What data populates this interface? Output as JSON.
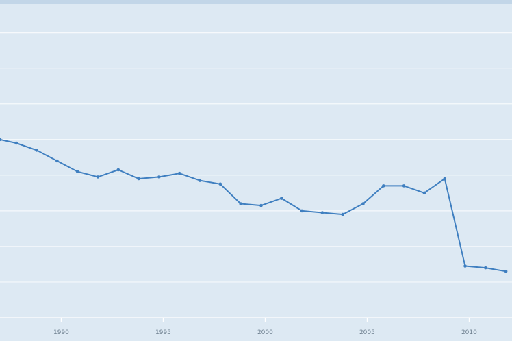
{
  "chart_data": {
    "type": "line",
    "title": "",
    "xlabel": "",
    "ylabel": "",
    "x_ticks": [
      "1990",
      "1995",
      "2000",
      "2005",
      "2010"
    ],
    "xlim": [
      1987,
      2012.1
    ],
    "ylim": [
      0,
      8.8
    ],
    "grid": true,
    "line_color": "#3f7fc0",
    "background_color": "#dde9f3",
    "series": [
      {
        "name": "",
        "x": [
          1987,
          1987.8,
          1988.8,
          1989.8,
          1990.8,
          1991.8,
          1992.8,
          1993.8,
          1994.8,
          1995.8,
          1996.8,
          1997.8,
          1998.8,
          1999.8,
          2000.8,
          2001.8,
          2002.8,
          2003.8,
          2004.8,
          2005.8,
          2006.8,
          2007.8,
          2008.8,
          2009.8,
          2010.8,
          2011.8
        ],
        "y": [
          5.0,
          4.9,
          4.7,
          4.4,
          4.1,
          3.95,
          4.15,
          3.9,
          3.95,
          4.05,
          3.85,
          3.75,
          3.2,
          3.15,
          3.35,
          3.0,
          2.95,
          2.9,
          3.2,
          3.7,
          3.7,
          3.5,
          3.9,
          1.45,
          1.4,
          1.3
        ]
      }
    ]
  }
}
